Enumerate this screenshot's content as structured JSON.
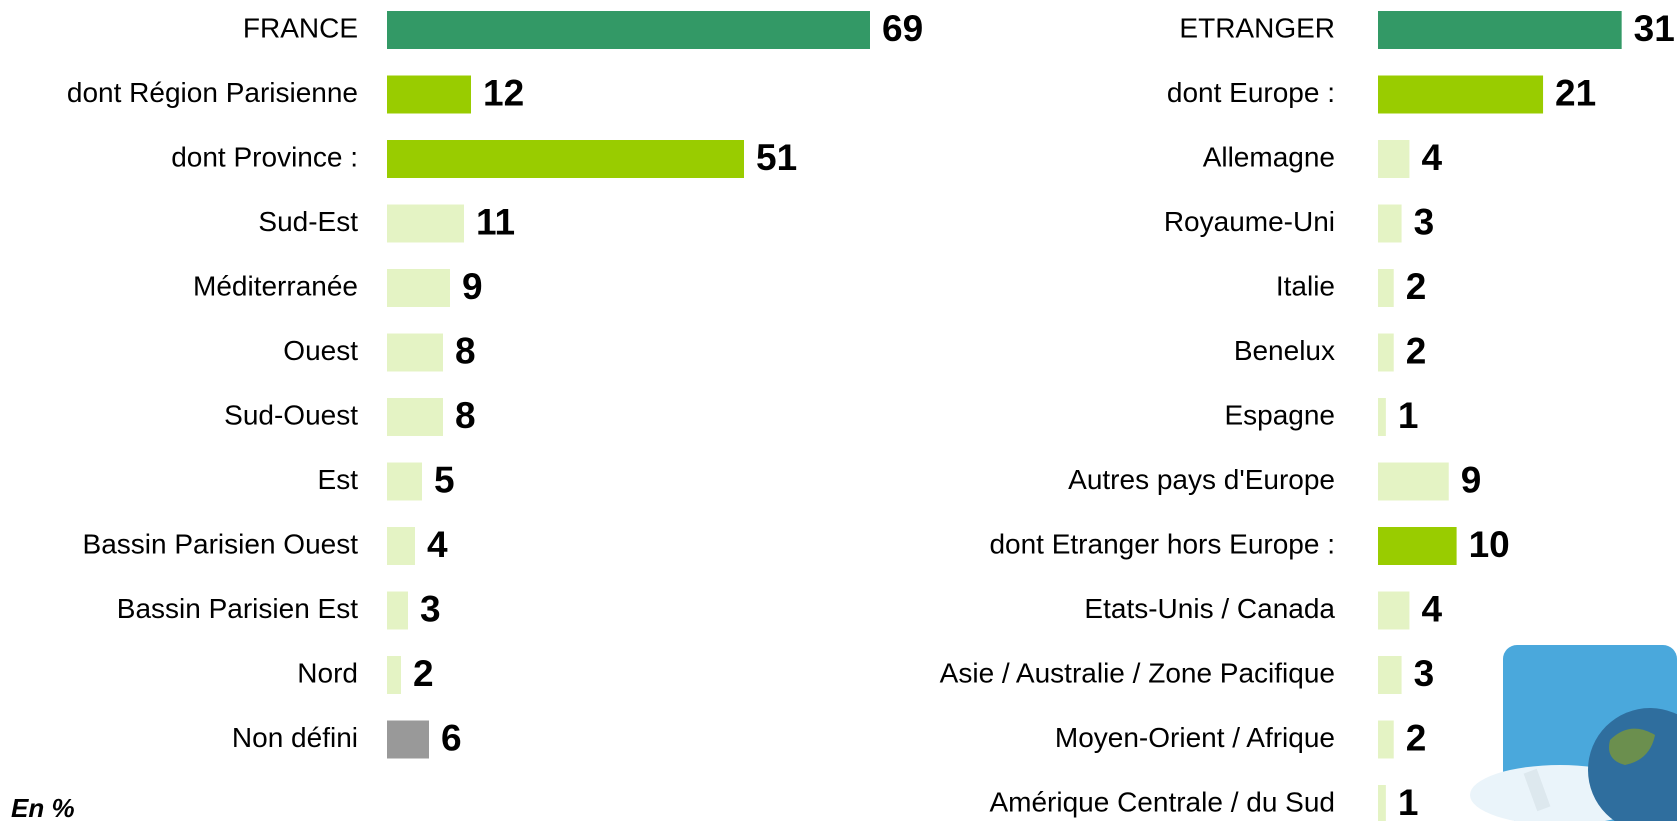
{
  "chart_data": [
    {
      "type": "bar",
      "orientation": "horizontal",
      "categories": [
        "FRANCE",
        "dont Région Parisienne",
        "dont Province :",
        "Sud-Est",
        "Méditerranée",
        "Ouest",
        "Sud-Ouest",
        "Est",
        "Bassin Parisien Ouest",
        "Bassin Parisien Est",
        "Nord",
        "Non défini"
      ],
      "values": [
        69,
        12,
        51,
        11,
        9,
        8,
        8,
        5,
        4,
        3,
        2,
        6
      ],
      "colors": [
        "#339966",
        "#99cc00",
        "#99cc00",
        "#e4f3c4",
        "#e4f3c4",
        "#e4f3c4",
        "#e4f3c4",
        "#e4f3c4",
        "#e4f3c4",
        "#e4f3c4",
        "#e4f3c4",
        "#999999"
      ],
      "annotation": "En %"
    },
    {
      "type": "bar",
      "orientation": "horizontal",
      "categories": [
        "ETRANGER",
        "dont Europe :",
        "Allemagne",
        "Royaume-Uni",
        "Italie",
        "Benelux",
        "Espagne",
        "Autres pays d'Europe",
        "dont Etranger hors Europe :",
        "Etats-Unis / Canada",
        "Asie / Australie / Zone Pacifique",
        "Moyen-Orient / Afrique",
        "Amérique Centrale / du Sud"
      ],
      "values": [
        31,
        21,
        4,
        3,
        2,
        2,
        1,
        9,
        10,
        4,
        3,
        2,
        1
      ],
      "colors": [
        "#339966",
        "#99cc00",
        "#e4f3c4",
        "#e4f3c4",
        "#e4f3c4",
        "#e4f3c4",
        "#e4f3c4",
        "#e4f3c4",
        "#99cc00",
        "#e4f3c4",
        "#e4f3c4",
        "#e4f3c4",
        "#e4f3c4"
      ]
    }
  ]
}
